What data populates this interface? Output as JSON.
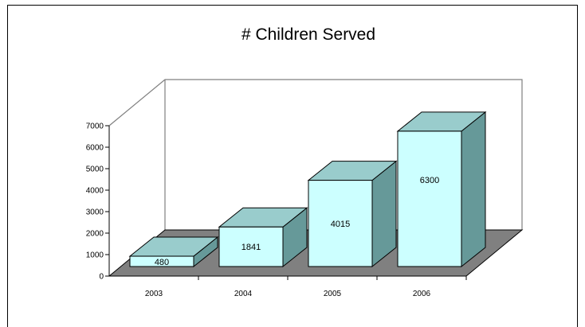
{
  "chart_data": {
    "type": "bar",
    "title": "# Children Served",
    "categories": [
      "2003",
      "2004",
      "2005",
      "2006"
    ],
    "values": [
      480,
      1841,
      4015,
      6300
    ],
    "data_labels": [
      "480",
      "1841",
      "4015",
      "6300"
    ],
    "ylim": [
      0,
      7000
    ],
    "yticks": [
      "0",
      "1000",
      "2000",
      "3000",
      "4000",
      "5000",
      "6000",
      "7000"
    ],
    "xlabel": "",
    "ylabel": "",
    "legend": "none",
    "colors": {
      "bar_front": "#ccffff",
      "bar_top": "#99cccc",
      "bar_side": "#669999",
      "floor": "#808080",
      "wall_line": "#808080"
    }
  }
}
